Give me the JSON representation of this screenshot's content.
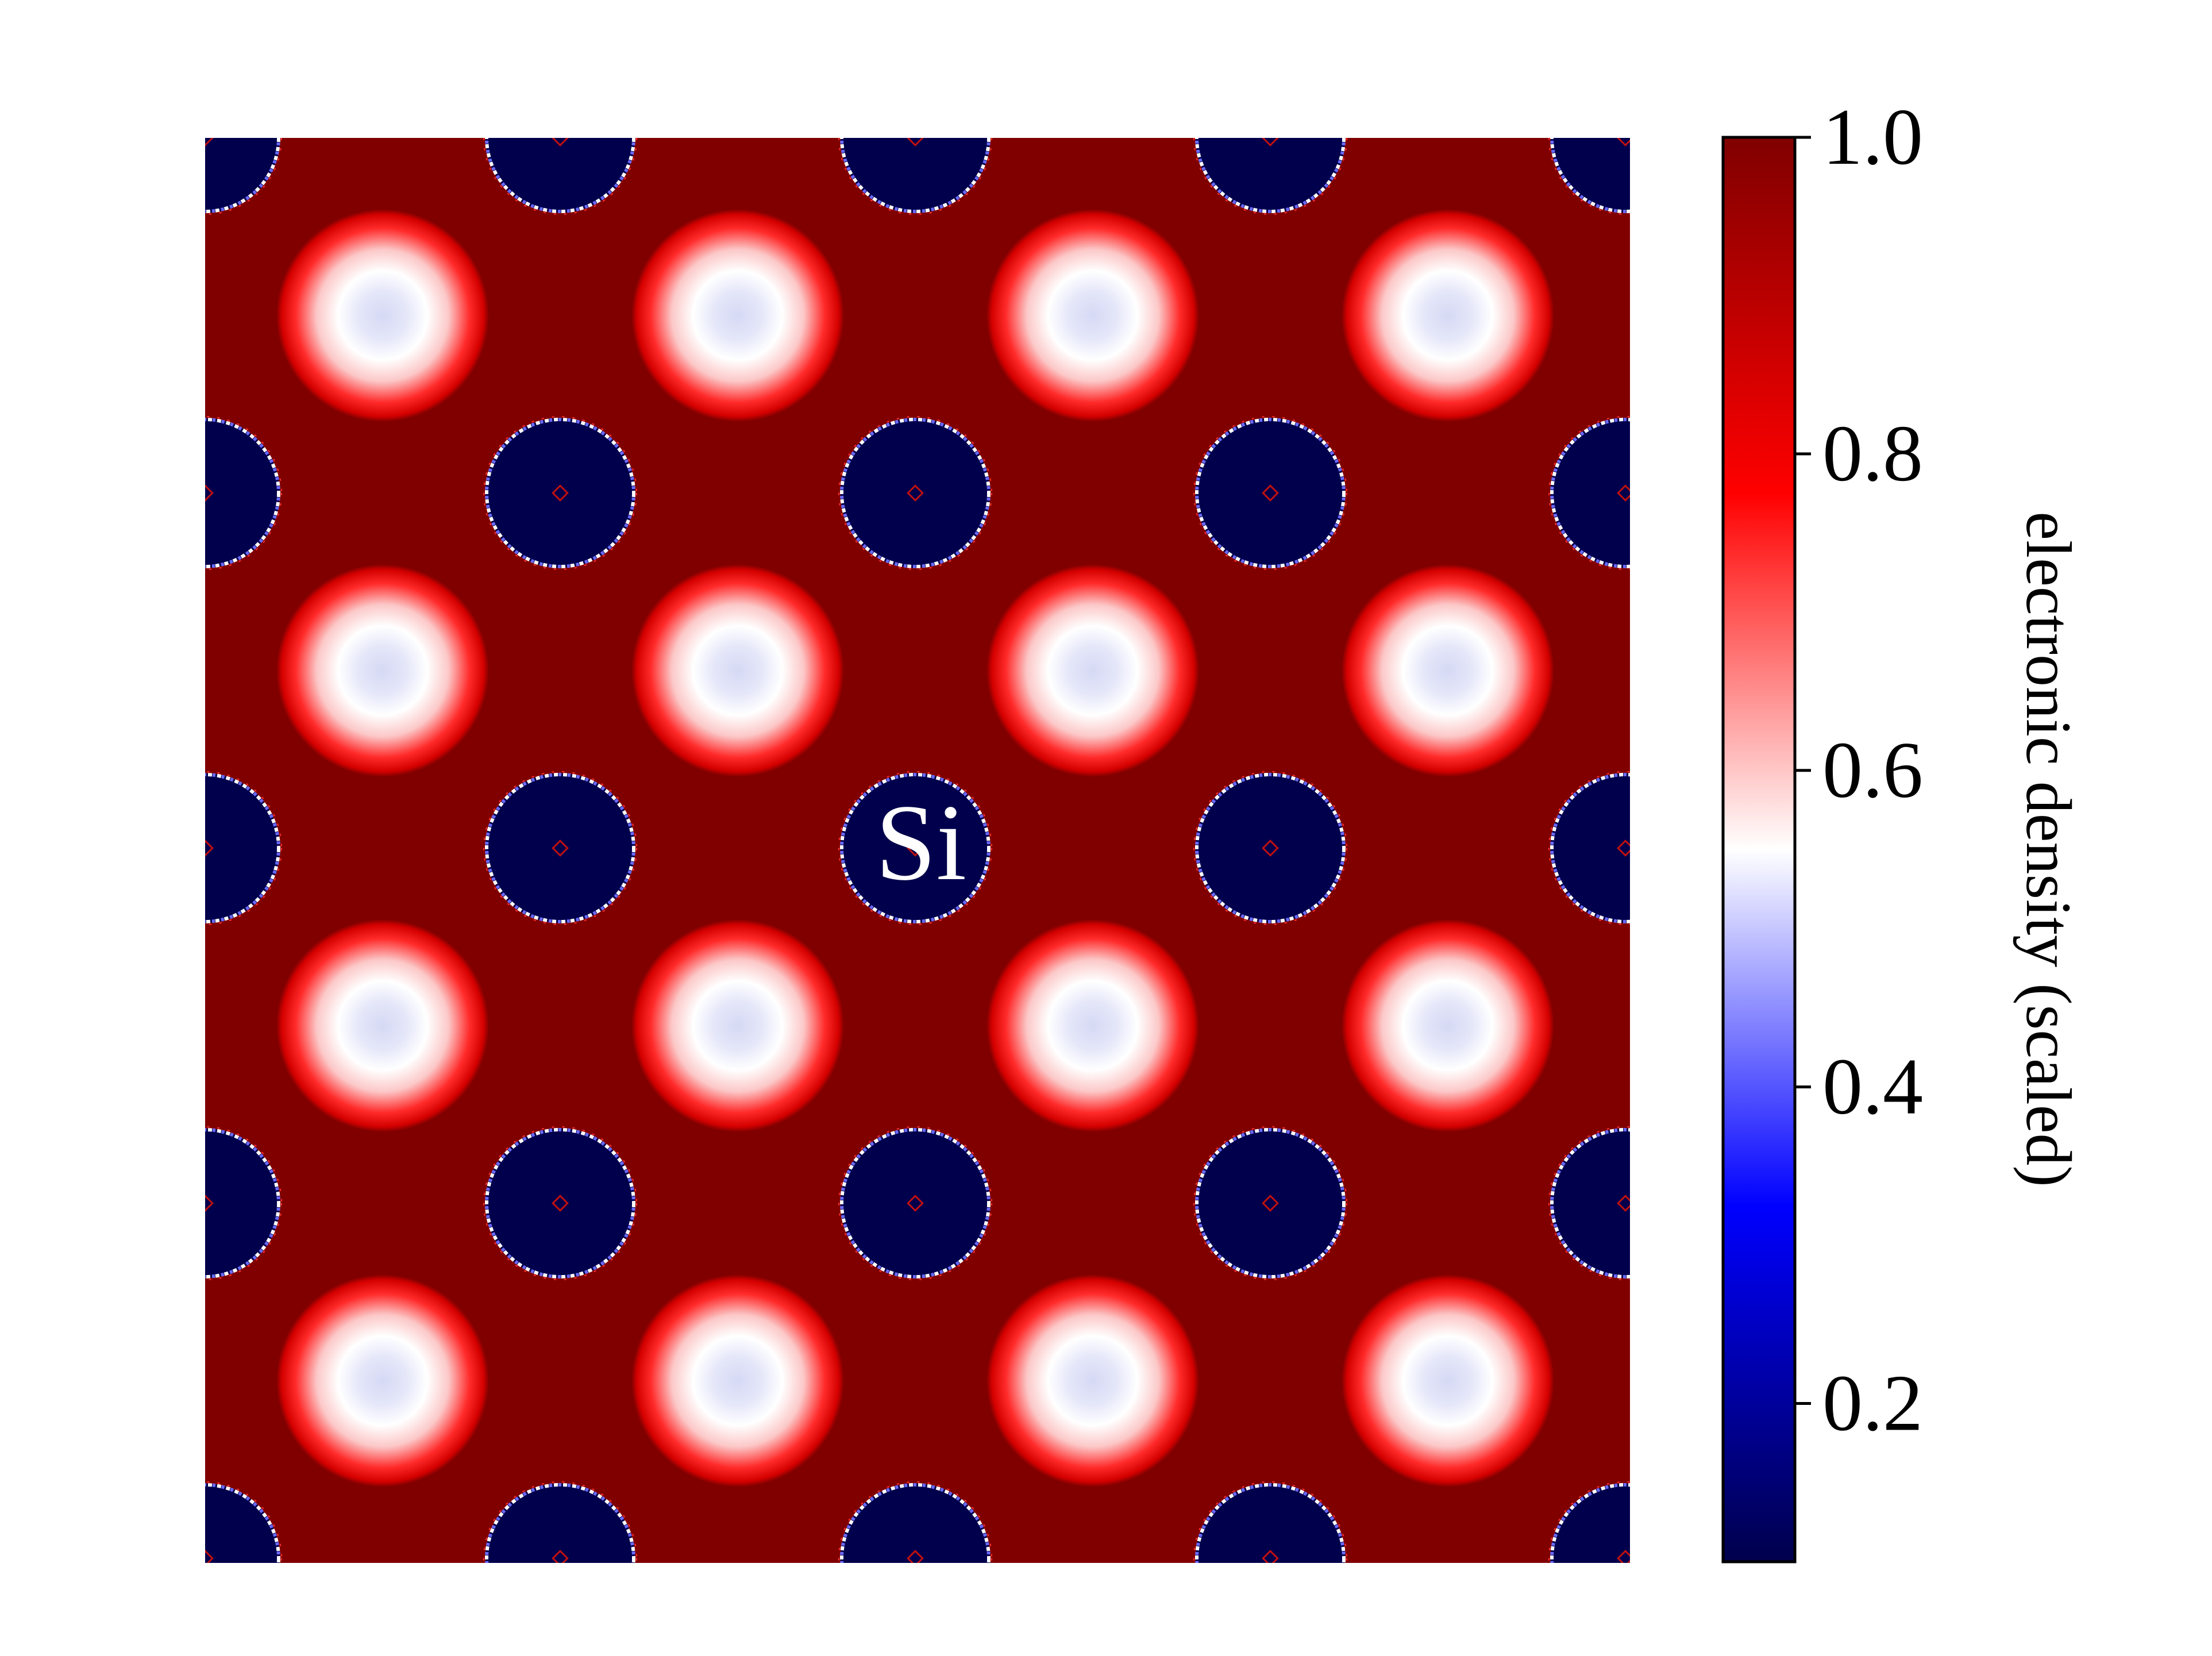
{
  "chart_data": {
    "type": "heatmap",
    "title": "",
    "xlabel": "",
    "ylabel": "",
    "colormap": "seismic",
    "colormap_stops": [
      "#00004c",
      "#0000ff",
      "#ffffff",
      "#ff0000",
      "#800000"
    ],
    "pattern": "silicon valence electron density, periodic 2D slice",
    "grid": false,
    "colorbar": {
      "label": "electronic density (scaled)",
      "range": [
        0.1,
        1.0
      ],
      "ticks": [
        "0.2",
        "0.4",
        "0.6",
        "0.8",
        "1.0"
      ],
      "tick_values": [
        0.2,
        0.4,
        0.6,
        0.8,
        1.0
      ]
    },
    "annotation": "Si",
    "features": {
      "background_level": 1.0,
      "atom_core_level": 0.1,
      "interstitial_peak_level": 0.5,
      "atom_rows": 5,
      "atom_cols": 5,
      "interstitial_rows": 4,
      "interstitial_cols": 4
    }
  }
}
